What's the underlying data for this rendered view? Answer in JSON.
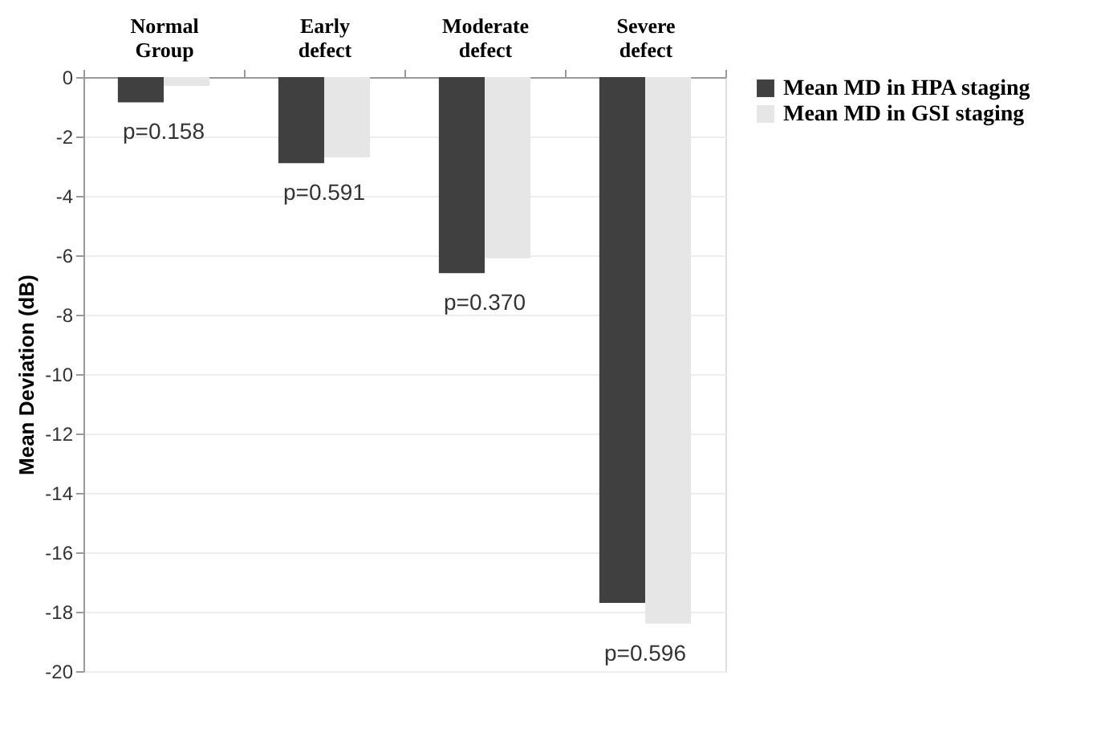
{
  "chart_data": {
    "type": "bar",
    "ylabel": "Mean Deviation (dB)",
    "categories": [
      "Normal Group",
      "Early defect",
      "Moderate defect",
      "Severe defect"
    ],
    "series": [
      {
        "name": "Mean MD in HPA staging",
        "color": "#404040",
        "values": [
          -0.85,
          -2.9,
          -6.6,
          -17.7
        ]
      },
      {
        "name": "Mean MD in GSI staging",
        "color": "#e6e6e6",
        "values": [
          -0.3,
          -2.7,
          -6.1,
          -18.4
        ]
      }
    ],
    "annotations": [
      "p=0.158",
      "p=0.591",
      "p=0.370",
      "p=0.596"
    ],
    "ylim": [
      -20,
      0
    ],
    "yticks": [
      0,
      -2,
      -4,
      -6,
      -8,
      -10,
      -12,
      -14,
      -16,
      -18,
      -20
    ],
    "grid": "y",
    "legend": "right"
  }
}
